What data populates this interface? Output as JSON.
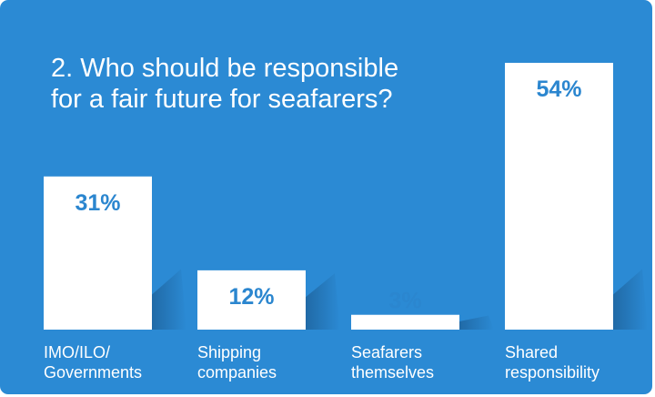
{
  "chart_data": {
    "type": "bar",
    "title_lines": [
      "2. Who should be responsible",
      "for a fair future for seafarers?"
    ],
    "categories": [
      [
        "IMO/ILO/",
        "Governments"
      ],
      [
        "Shipping",
        "companies"
      ],
      [
        "Seafarers",
        "themselves"
      ],
      [
        "Shared",
        "responsibility"
      ]
    ],
    "values": [
      31,
      12,
      3,
      54
    ],
    "value_labels": [
      "31%",
      "12%",
      "3%",
      "54%"
    ],
    "ylim": [
      0,
      54
    ],
    "grid": false,
    "legend": "none"
  },
  "colors": {
    "background": "#2B8AD4",
    "bar": "#ffffff",
    "value_text": "#2B86CF",
    "category_text": "#ffffff",
    "shadow": "#1D5F97"
  }
}
